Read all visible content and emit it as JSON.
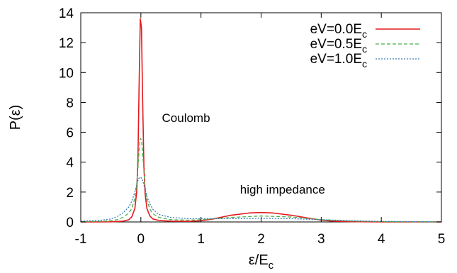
{
  "chart_data": {
    "type": "line",
    "title": "",
    "xlabel": {
      "main": "ε/E",
      "sub": "c"
    },
    "ylabel": "P(ε)",
    "xlim": [
      -1,
      5
    ],
    "ylim": [
      0,
      14
    ],
    "xticks": [
      "-1",
      "0",
      "1",
      "2",
      "3",
      "4",
      "5"
    ],
    "yticks": [
      "0",
      "2",
      "4",
      "6",
      "8",
      "10",
      "12",
      "14"
    ],
    "grid": false,
    "legend_position": "top-right",
    "annotations": [
      {
        "text": "Coulomb",
        "x": 0.35,
        "y": 6.7
      },
      {
        "text": "high impedance",
        "x": 1.65,
        "y": 1.9
      }
    ],
    "series": [
      {
        "name": "eV=0.0E",
        "name_sub": "c",
        "color": "#e41a1c",
        "dash": "solid",
        "points": [
          [
            -1,
            0.0
          ],
          [
            -0.5,
            0.01
          ],
          [
            -0.3,
            0.05
          ],
          [
            -0.2,
            0.15
          ],
          [
            -0.15,
            0.35
          ],
          [
            -0.1,
            0.9
          ],
          [
            -0.07,
            2.0
          ],
          [
            -0.05,
            4.0
          ],
          [
            -0.03,
            9.0
          ],
          [
            -0.01,
            13.6
          ],
          [
            0.01,
            13.0
          ],
          [
            0.03,
            8.0
          ],
          [
            0.05,
            3.8
          ],
          [
            0.07,
            1.9
          ],
          [
            0.1,
            0.9
          ],
          [
            0.15,
            0.4
          ],
          [
            0.2,
            0.2
          ],
          [
            0.3,
            0.1
          ],
          [
            0.5,
            0.05
          ],
          [
            0.8,
            0.04
          ],
          [
            1.0,
            0.08
          ],
          [
            1.2,
            0.2
          ],
          [
            1.5,
            0.45
          ],
          [
            1.8,
            0.6
          ],
          [
            2.0,
            0.63
          ],
          [
            2.2,
            0.6
          ],
          [
            2.5,
            0.45
          ],
          [
            2.8,
            0.25
          ],
          [
            3.0,
            0.12
          ],
          [
            3.2,
            0.05
          ],
          [
            3.5,
            0.02
          ],
          [
            4.0,
            0.0
          ],
          [
            5.0,
            0.0
          ]
        ]
      },
      {
        "name": "eV=0.5E",
        "name_sub": "c",
        "color": "#4daf4a",
        "dash": "5,3",
        "points": [
          [
            -1,
            0.02
          ],
          [
            -0.6,
            0.05
          ],
          [
            -0.4,
            0.15
          ],
          [
            -0.3,
            0.3
          ],
          [
            -0.2,
            0.6
          ],
          [
            -0.15,
            0.9
          ],
          [
            -0.1,
            1.6
          ],
          [
            -0.07,
            2.5
          ],
          [
            -0.05,
            3.5
          ],
          [
            -0.03,
            4.8
          ],
          [
            -0.01,
            5.6
          ],
          [
            0.01,
            5.5
          ],
          [
            0.03,
            4.6
          ],
          [
            0.05,
            3.4
          ],
          [
            0.07,
            2.4
          ],
          [
            0.1,
            1.5
          ],
          [
            0.15,
            0.85
          ],
          [
            0.2,
            0.55
          ],
          [
            0.3,
            0.3
          ],
          [
            0.5,
            0.15
          ],
          [
            0.8,
            0.12
          ],
          [
            1.0,
            0.15
          ],
          [
            1.5,
            0.3
          ],
          [
            2.0,
            0.4
          ],
          [
            2.5,
            0.33
          ],
          [
            3.0,
            0.15
          ],
          [
            3.5,
            0.06
          ],
          [
            4.0,
            0.02
          ],
          [
            4.5,
            0.01
          ],
          [
            5.0,
            0.0
          ]
        ]
      },
      {
        "name": "eV=1.0E",
        "name_sub": "c",
        "color": "#377eb8",
        "dash": "2,2",
        "points": [
          [
            -1,
            0.05
          ],
          [
            -0.7,
            0.1
          ],
          [
            -0.5,
            0.2
          ],
          [
            -0.4,
            0.35
          ],
          [
            -0.3,
            0.6
          ],
          [
            -0.2,
            1.0
          ],
          [
            -0.15,
            1.4
          ],
          [
            -0.1,
            2.0
          ],
          [
            -0.07,
            2.5
          ],
          [
            -0.04,
            2.9
          ],
          [
            -0.01,
            3.0
          ],
          [
            0.02,
            2.9
          ],
          [
            0.05,
            2.5
          ],
          [
            0.08,
            2.0
          ],
          [
            0.1,
            1.7
          ],
          [
            0.15,
            1.2
          ],
          [
            0.2,
            0.85
          ],
          [
            0.3,
            0.5
          ],
          [
            0.5,
            0.3
          ],
          [
            0.8,
            0.22
          ],
          [
            1.0,
            0.22
          ],
          [
            1.5,
            0.22
          ],
          [
            2.0,
            0.24
          ],
          [
            2.5,
            0.22
          ],
          [
            3.0,
            0.15
          ],
          [
            3.5,
            0.08
          ],
          [
            4.0,
            0.04
          ],
          [
            4.5,
            0.02
          ],
          [
            5.0,
            0.01
          ]
        ]
      }
    ]
  }
}
